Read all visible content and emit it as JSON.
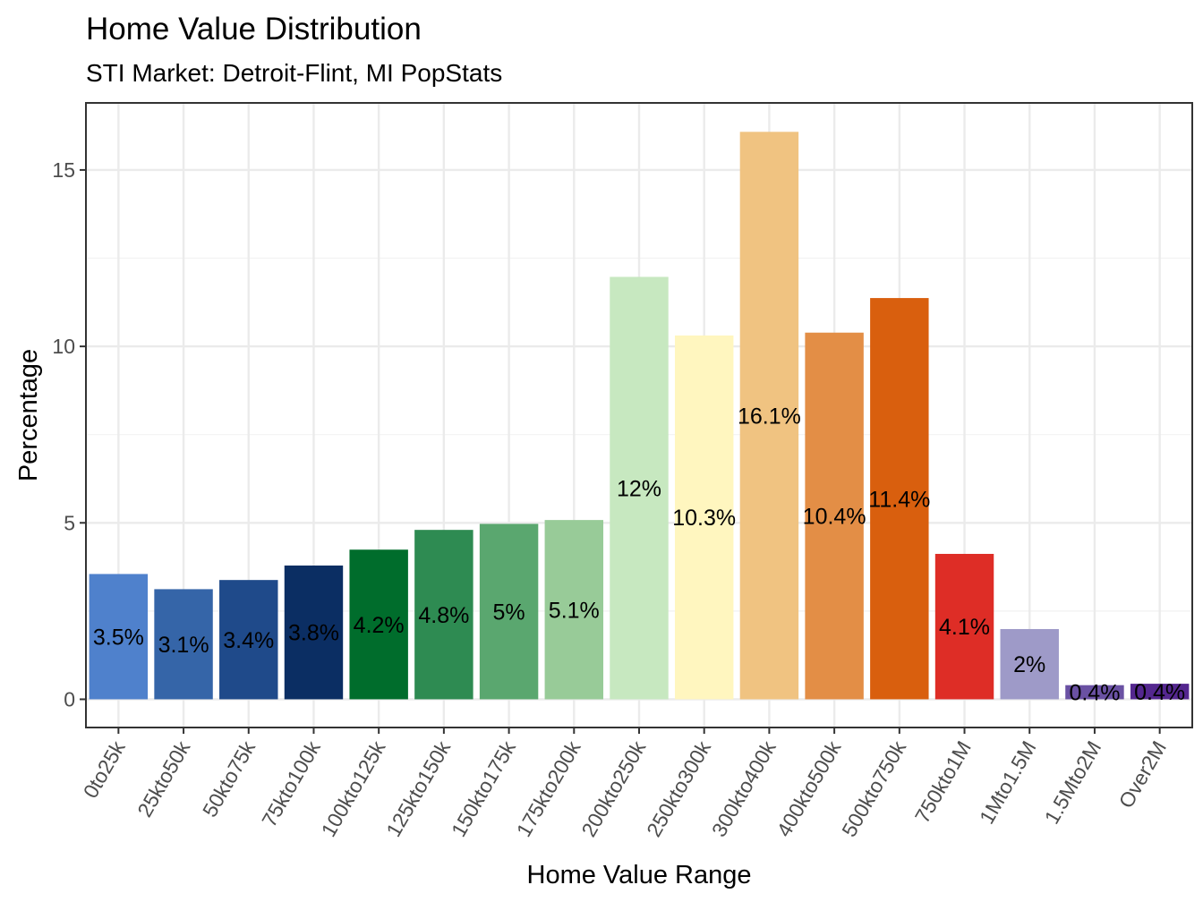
{
  "chart_data": {
    "type": "bar",
    "title": "Home Value Distribution",
    "subtitle": "STI Market: Detroit-Flint, MI PopStats",
    "xlabel": "Home Value Range",
    "ylabel": "Percentage",
    "ylim": [
      -0.8,
      16.9
    ],
    "yticks": [
      0,
      5,
      10,
      15
    ],
    "grid": true,
    "legend": "none",
    "categories": [
      "0to25k",
      "25kto50k",
      "50kto75k",
      "75kto100k",
      "100kto125k",
      "125kto150k",
      "150kto175k",
      "175kto200k",
      "200kto250k",
      "250kto300k",
      "300kto400k",
      "400kto500k",
      "500kto750k",
      "750kto1M",
      "1Mto1.5M",
      "1.5Mto2M",
      "Over2M"
    ],
    "values": [
      3.55,
      3.12,
      3.38,
      3.79,
      4.24,
      4.8,
      4.97,
      5.08,
      11.97,
      10.31,
      16.08,
      10.39,
      11.37,
      4.12,
      1.99,
      0.4,
      0.44
    ],
    "labels": [
      "3.5%",
      "3.1%",
      "3.4%",
      "3.8%",
      "4.2%",
      "4.8%",
      "5%",
      "5.1%",
      "12%",
      "10.3%",
      "16.1%",
      "10.4%",
      "11.4%",
      "4.1%",
      "2%",
      "0.4%",
      "0.4%"
    ],
    "colors": [
      "#4f81cc",
      "#3565a8",
      "#1f4a8a",
      "#0b2e63",
      "#006d2c",
      "#2e8b52",
      "#5aa76f",
      "#98cb98",
      "#c7e8c0",
      "#fff6bf",
      "#f0c381",
      "#e38e46",
      "#d95f0e",
      "#de2d26",
      "#9e9ac8",
      "#6a51a3",
      "#54278f"
    ]
  }
}
